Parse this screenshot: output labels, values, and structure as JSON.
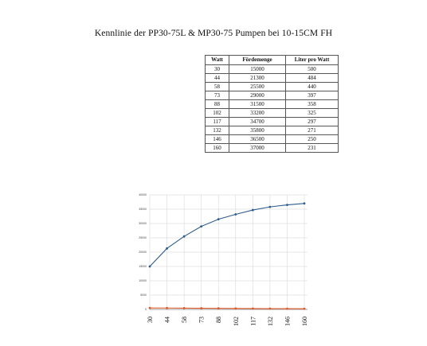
{
  "title": "Kennlinie der PP30-75L & MP30-75 Pumpen bei 10-15CM  FH",
  "table": {
    "headers": [
      "Watt",
      "Fördemenge",
      "Liter pro Watt"
    ],
    "rows": [
      [
        "30",
        "15000",
        "500"
      ],
      [
        "44",
        "21300",
        "484"
      ],
      [
        "58",
        "25500",
        "440"
      ],
      [
        "73",
        "29000",
        "397"
      ],
      [
        "88",
        "31500",
        "358"
      ],
      [
        "102",
        "33200",
        "325"
      ],
      [
        "117",
        "34700",
        "297"
      ],
      [
        "132",
        "35800",
        "271"
      ],
      [
        "146",
        "36500",
        "250"
      ],
      [
        "160",
        "37000",
        "231"
      ]
    ]
  },
  "chart_data": {
    "type": "line",
    "categories": [
      "30",
      "44",
      "58",
      "73",
      "88",
      "102",
      "117",
      "132",
      "146",
      "160"
    ],
    "series": [
      {
        "values": [
          15000,
          21300,
          25500,
          29000,
          31500,
          33200,
          34700,
          35800,
          36500,
          37000
        ],
        "color": "#2f5d8a",
        "markers": true
      },
      {
        "values": [
          500,
          484,
          440,
          397,
          358,
          325,
          297,
          271,
          250,
          231
        ],
        "color": "#e05a2a",
        "markers": true
      }
    ],
    "ylim": [
      0,
      40000
    ],
    "yticks": [
      "0",
      "5000",
      "10000",
      "15000",
      "20000",
      "25000",
      "30000",
      "35000",
      "40000"
    ],
    "grid": true,
    "legend": "none",
    "xlabel": "",
    "ylabel": ""
  }
}
